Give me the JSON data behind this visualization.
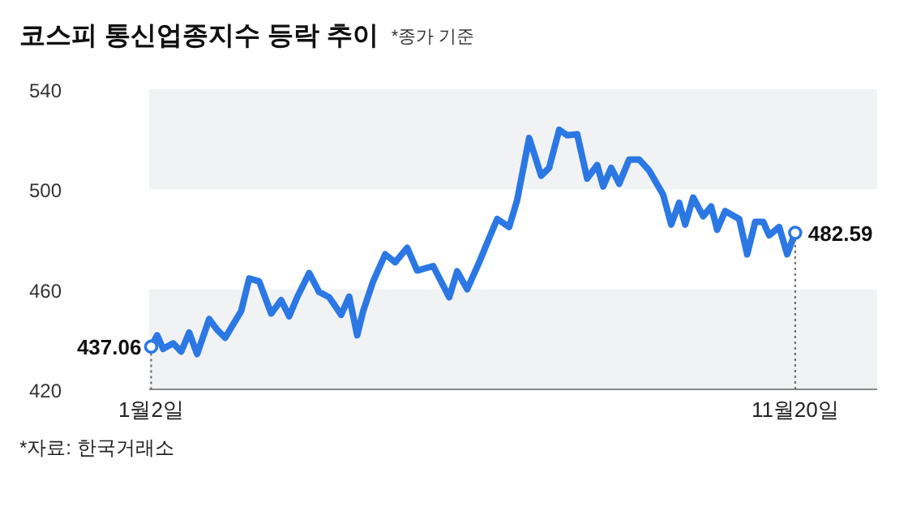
{
  "chart_data": {
    "type": "line",
    "title": "코스피 통신업종지수 등락 추이",
    "subtitle": "*종가 기준",
    "annotations": [
      "*자료: 한국거래소"
    ],
    "x": [
      "--01-02",
      "--01-05",
      "--01-08",
      "--01-13",
      "--01-17",
      "--01-21",
      "--01-25",
      "--01-31",
      "--02-04",
      "--02-08",
      "--02-12",
      "--02-16",
      "--02-20",
      "--02-25",
      "--03-03",
      "--03-08",
      "--03-12",
      "--03-16",
      "--03-22",
      "--03-27",
      "--04-01",
      "--04-07",
      "--04-11",
      "--04-15",
      "--04-18",
      "--04-23",
      "--04-29",
      "--05-04",
      "--05-10",
      "--05-15",
      "--05-23",
      "--05-31",
      "--06-04",
      "--06-09",
      "--06-15",
      "--06-20",
      "--06-24",
      "--06-30",
      "--07-04",
      "--07-10",
      "--07-16",
      "--07-20",
      "--07-25",
      "--07-29",
      "--08-03",
      "--08-08",
      "--08-13",
      "--08-16",
      "--08-20",
      "--08-24",
      "--08-29",
      "--09-03",
      "--09-08",
      "--09-15",
      "--09-19",
      "--09-23",
      "--09-26",
      "--09-30",
      "--10-05",
      "--10-09",
      "--10-12",
      "--10-16",
      "--10-23",
      "--10-27",
      "--10-31",
      "--11-04",
      "--11-07",
      "--11-12",
      "--11-16",
      "--11-20"
    ],
    "series": [
      {
        "color": "#2b78e4",
        "values": [
          437.06,
          441.6,
          436.2,
          438.4,
          435.1,
          442.7,
          434.1,
          448.1,
          443.8,
          440.6,
          446,
          451.3,
          464.3,
          463.2,
          450.3,
          455.7,
          449.2,
          456.8,
          466.5,
          458.9,
          456.8,
          449.8,
          457.1,
          441.6,
          451.3,
          463.2,
          474,
          470.8,
          476.6,
          467.5,
          469.3,
          456.8,
          467.2,
          460,
          470.8,
          480.5,
          488.1,
          484.9,
          495.7,
          520.5,
          505.4,
          508.6,
          523.8,
          521.6,
          522,
          504.3,
          509.7,
          501.1,
          508.6,
          502.2,
          511.9,
          511.9,
          507.5,
          497.8,
          485.9,
          494.6,
          485.9,
          496.7,
          489.2,
          493.1,
          483.8,
          491.3,
          488.1,
          474,
          487,
          487,
          481.6,
          484.9,
          474,
          482.59
        ],
        "value_labels": [
          "437.06",
          null,
          null,
          null,
          null,
          null,
          null,
          null,
          null,
          null,
          null,
          null,
          null,
          null,
          null,
          null,
          null,
          null,
          null,
          null,
          null,
          null,
          null,
          null,
          null,
          null,
          null,
          null,
          null,
          null,
          null,
          null,
          null,
          null,
          null,
          null,
          null,
          null,
          null,
          null,
          null,
          null,
          null,
          null,
          null,
          null,
          null,
          null,
          null,
          null,
          null,
          null,
          null,
          null,
          null,
          null,
          null,
          null,
          null,
          null,
          null,
          null,
          null,
          null,
          null,
          null,
          null,
          null,
          null,
          "482.59"
        ]
      }
    ],
    "xticks": [
      {
        "value": "--01-02",
        "label": "1월2일"
      },
      {
        "value": "--11-20",
        "label": "11월20일"
      }
    ],
    "xlim": [
      "--01-01",
      "--12-31"
    ],
    "ylim": [
      420,
      540
    ],
    "yticks": [
      420,
      460,
      500,
      540
    ],
    "bands": [
      {
        "axis": "y",
        "from": 420,
        "to": 460,
        "color": "#f1f2f3"
      },
      {
        "axis": "y",
        "from": 500,
        "to": 540,
        "color": "#f1f2f3"
      }
    ],
    "marker": "none",
    "line_style": "solid"
  }
}
